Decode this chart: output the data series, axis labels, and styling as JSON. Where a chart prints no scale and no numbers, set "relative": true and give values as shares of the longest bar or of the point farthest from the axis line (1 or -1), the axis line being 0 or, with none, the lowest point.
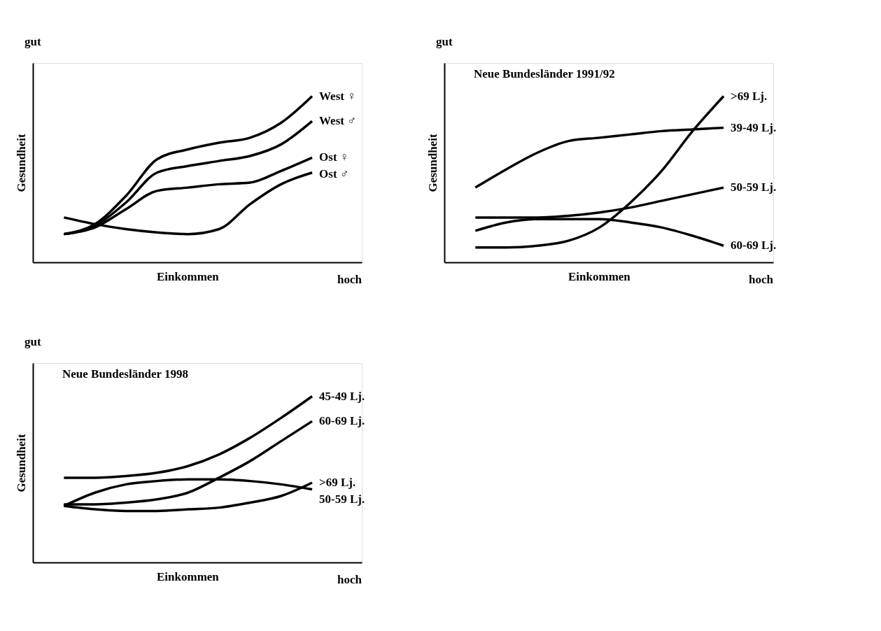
{
  "chart_data": [
    {
      "type": "line",
      "relative": true,
      "xlabel": "Einkommen",
      "ylabel": "Gesundheit",
      "annotations": [
        "gut",
        "hoch"
      ],
      "legend": false,
      "marker": "none",
      "line_style": "solid",
      "categories": [
        null,
        null,
        null,
        null,
        null,
        null,
        null,
        null,
        null
      ],
      "series": [
        {
          "name": "West ♀",
          "color": "#000000",
          "values": [
            0.17,
            0.23,
            0.4,
            0.62,
            0.68,
            0.72,
            0.75,
            0.84,
            1.0
          ]
        },
        {
          "name": "West ♂",
          "color": "#000000",
          "values": [
            0.17,
            0.22,
            0.36,
            0.54,
            0.58,
            0.61,
            0.64,
            0.71,
            0.85
          ]
        },
        {
          "name": "Ost ♀",
          "color": "#000000",
          "values": [
            0.17,
            0.21,
            0.32,
            0.43,
            0.45,
            0.47,
            0.48,
            0.55,
            0.63
          ]
        },
        {
          "name": "Ost ♂",
          "color": "#000000",
          "values": [
            0.27,
            0.23,
            0.2,
            0.18,
            0.17,
            0.2,
            0.35,
            0.47,
            0.54
          ]
        }
      ]
    },
    {
      "type": "line",
      "relative": true,
      "title": "Neue Bundesländer 1991/92",
      "xlabel": "Einkommen",
      "ylabel": "Gesundheit",
      "annotations": [
        "gut",
        "hoch"
      ],
      "legend": false,
      "marker": "none",
      "line_style": "solid",
      "categories": [
        null,
        null,
        null,
        null,
        null,
        null,
        null,
        null,
        null
      ],
      "series": [
        {
          "name": ">69 Lj.",
          "color": "#000000",
          "values": [
            0.09,
            0.09,
            0.1,
            0.13,
            0.21,
            0.36,
            0.55,
            0.79,
            1.0
          ]
        },
        {
          "name": "39-49 Lj.",
          "color": "#000000",
          "values": [
            0.45,
            0.56,
            0.66,
            0.73,
            0.75,
            0.77,
            0.79,
            0.8,
            0.81
          ]
        },
        {
          "name": "50-59 Lj.",
          "color": "#000000",
          "values": [
            0.27,
            0.27,
            0.27,
            0.28,
            0.3,
            0.33,
            0.37,
            0.41,
            0.45
          ]
        },
        {
          "name": "60-69 Lj.",
          "color": "#000000",
          "values": [
            0.19,
            0.24,
            0.26,
            0.26,
            0.26,
            0.24,
            0.21,
            0.16,
            0.1
          ]
        }
      ]
    },
    {
      "type": "line",
      "relative": true,
      "title": "Neue Bundesländer 1998",
      "xlabel": "Einkommen",
      "ylabel": "Gesundheit",
      "annotations": [
        "gut",
        "hoch"
      ],
      "legend": false,
      "marker": "none",
      "line_style": "solid",
      "categories": [
        null,
        null,
        null,
        null,
        null,
        null,
        null,
        null,
        null
      ],
      "series": [
        {
          "name": "45-49 Lj.",
          "color": "#000000",
          "values": [
            0.51,
            0.51,
            0.52,
            0.54,
            0.58,
            0.65,
            0.75,
            0.87,
            1.0
          ]
        },
        {
          "name": "60-69 Lj.",
          "color": "#000000",
          "values": [
            0.35,
            0.35,
            0.36,
            0.38,
            0.42,
            0.51,
            0.61,
            0.73,
            0.85
          ]
        },
        {
          "name": "50-59 Lj.",
          "color": "#000000",
          "values": [
            0.34,
            0.42,
            0.47,
            0.49,
            0.5,
            0.5,
            0.49,
            0.47,
            0.44
          ]
        },
        {
          "name": ">69 Lj.",
          "color": "#000000",
          "values": [
            0.34,
            0.32,
            0.31,
            0.31,
            0.32,
            0.33,
            0.36,
            0.4,
            0.48
          ]
        }
      ]
    }
  ]
}
